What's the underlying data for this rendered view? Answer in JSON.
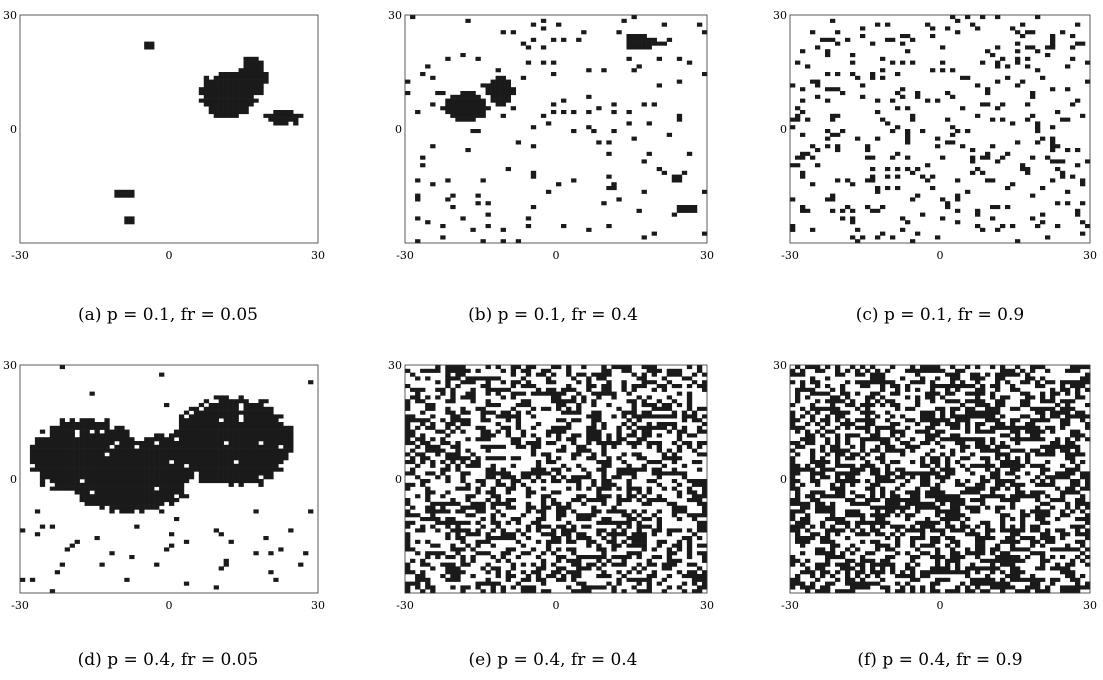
{
  "colors": {
    "occupied": "#1a1a1a",
    "frame": "#333333",
    "background": "#ffffff"
  },
  "chart_data": [
    {
      "type": "heatmap",
      "pattern": "clusters",
      "seed": 11,
      "xlim": [
        -30,
        30
      ],
      "ylim": [
        -30,
        30
      ],
      "xticks": [
        "-30",
        "0",
        "30"
      ],
      "yticks": [
        "30",
        "0"
      ],
      "caption": "(a) p = 0.1, fr = 0.05",
      "p": 0.1,
      "fr": 0.05,
      "grid_cells": 60,
      "cell_value_occupied": 1,
      "blobs": [
        {
          "x": 12,
          "y": 9,
          "w": 6,
          "h": 7
        },
        {
          "x": 17,
          "y": 14,
          "w": 3,
          "h": 6
        },
        {
          "x": 23,
          "y": 3,
          "w": 4,
          "h": 2
        },
        {
          "x": -9,
          "y": -17,
          "w": 2,
          "h": 1.5
        }
      ],
      "specks": [
        {
          "x": -4,
          "y": 22
        },
        {
          "x": -8,
          "y": -24
        }
      ]
    },
    {
      "type": "heatmap",
      "pattern": "clusters",
      "seed": 23,
      "xlim": [
        -30,
        30
      ],
      "ylim": [
        -30,
        30
      ],
      "xticks": [
        "-30",
        "0",
        "30"
      ],
      "yticks": [
        "30",
        "0"
      ],
      "caption": "(b) p = 0.1, fr = 0.4",
      "p": 0.1,
      "fr": 0.4,
      "grid_cells": 60,
      "cell_value_occupied": 1,
      "blobs": [
        {
          "x": -18,
          "y": 6,
          "w": 5,
          "h": 4
        },
        {
          "x": -11,
          "y": 10,
          "w": 3,
          "h": 4
        },
        {
          "x": 17,
          "y": 23,
          "w": 4,
          "h": 2
        },
        {
          "x": 26,
          "y": -21,
          "w": 2.5,
          "h": 1.5
        },
        {
          "x": 24,
          "y": -13,
          "w": 1.5,
          "h": 1.5
        }
      ],
      "noise": 0.04
    },
    {
      "type": "heatmap",
      "pattern": "noise",
      "seed": 37,
      "xlim": [
        -30,
        30
      ],
      "ylim": [
        -30,
        30
      ],
      "xticks": [
        "-30",
        "0",
        "30"
      ],
      "yticks": [
        "30",
        "0"
      ],
      "caption": "(c) p = 0.1, fr = 0.9",
      "p": 0.1,
      "fr": 0.9,
      "grid_cells": 60,
      "cell_value_occupied": 1,
      "noise": 0.1
    },
    {
      "type": "heatmap",
      "pattern": "clusters",
      "seed": 41,
      "xlim": [
        -30,
        30
      ],
      "ylim": [
        -30,
        30
      ],
      "xticks": [
        "-30",
        "0",
        "30"
      ],
      "yticks": [
        "30",
        "0"
      ],
      "caption": "(d) p = 0.4, fr = 0.05",
      "p": 0.4,
      "fr": 0.05,
      "grid_cells": 60,
      "cell_value_occupied": 1,
      "blobs": [
        {
          "x": -17,
          "y": 6,
          "w": 12,
          "h": 11
        },
        {
          "x": 13,
          "y": 10,
          "w": 13,
          "h": 13
        },
        {
          "x": -2,
          "y": 4,
          "w": 8,
          "h": 8
        },
        {
          "x": -8,
          "y": -4,
          "w": 12,
          "h": 5
        }
      ],
      "holes": 0.03,
      "noise": 0.03,
      "noise_region": {
        "y_max": -6
      }
    },
    {
      "type": "heatmap",
      "pattern": "dense",
      "seed": 53,
      "xlim": [
        -30,
        30
      ],
      "ylim": [
        -30,
        30
      ],
      "xticks": [
        "-30",
        "0",
        "30"
      ],
      "yticks": [
        "30",
        "0"
      ],
      "caption": "(e) p = 0.4, fr = 0.4",
      "p": 0.4,
      "fr": 0.4,
      "grid_cells": 60,
      "cell_value_occupied": 1,
      "noise": 0.4
    },
    {
      "type": "heatmap",
      "pattern": "checker",
      "seed": 67,
      "xlim": [
        -30,
        30
      ],
      "ylim": [
        -30,
        30
      ],
      "xticks": [
        "-30",
        "0",
        "30"
      ],
      "yticks": [
        "30",
        "0"
      ],
      "caption": "(f) p = 0.4, fr = 0.9",
      "p": 0.4,
      "fr": 0.9,
      "grid_cells": 60,
      "cell_value_occupied": 1,
      "noise": 0.5
    }
  ]
}
